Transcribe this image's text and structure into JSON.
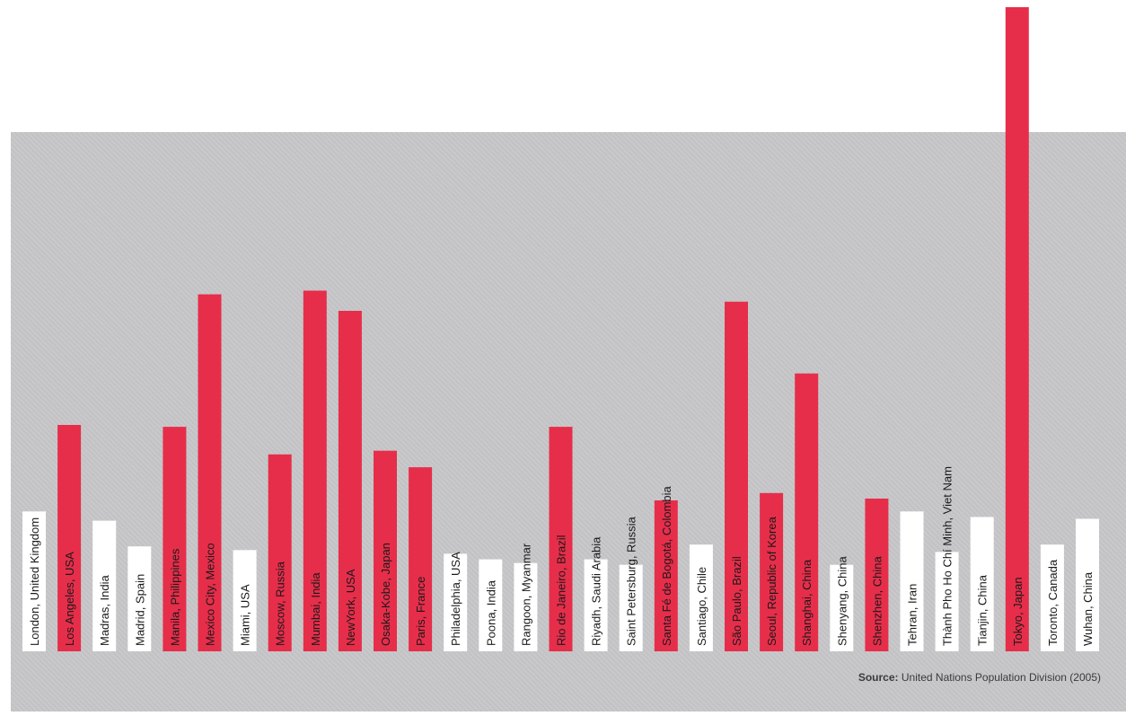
{
  "chart_data": {
    "type": "bar",
    "title": "",
    "xlabel": "",
    "ylabel": "",
    "categories": [
      "London, United Kingdom",
      "Los Angeles, USA",
      "Madras, India",
      "Madrid, Spain",
      "Manila, Philippines",
      "Mexico City, Mexico",
      "Miami, USA",
      "Moscow, Russia",
      "Mumbai, India",
      "NewYork, USA",
      "Osaka-Kobe, Japan",
      "Paris, France",
      "Philadelphia, USA",
      "Poona, India",
      "Rangoon, Myanmar",
      "Rio de Janeiro, Brazil",
      "Riyadh, Saudi Arabia",
      "Saint Petersburg, Russia",
      "Santa Fé de Bogotá, Colombia",
      "Santiago, Chile",
      "São Paulo, Brazil",
      "Seoul, Republic of Korea",
      "Shanghai, China",
      "Shenyang, China",
      "Shenzhen, China",
      "Tehran, Iran",
      "Thành Pho Ho Chí Minh, Viet Nam",
      "Tianjin, China",
      "Tokyo, Japan",
      "Toronto, Canada",
      "Wuhan, China"
    ],
    "values": [
      7.6,
      12.3,
      7.1,
      5.7,
      12.2,
      19.4,
      5.5,
      10.7,
      19.6,
      18.5,
      10.9,
      10.0,
      5.3,
      5.0,
      4.8,
      12.2,
      5.0,
      4.7,
      8.2,
      5.8,
      19.0,
      8.6,
      15.1,
      4.7,
      8.3,
      7.6,
      5.4,
      7.3,
      35.0,
      5.8,
      7.2
    ],
    "highlight": [
      false,
      true,
      false,
      false,
      true,
      true,
      false,
      true,
      true,
      true,
      true,
      true,
      false,
      false,
      false,
      true,
      false,
      false,
      true,
      false,
      true,
      true,
      true,
      false,
      true,
      false,
      false,
      false,
      true,
      false,
      false
    ],
    "ylim": [
      0,
      35
    ],
    "grid": false,
    "legend": "none",
    "colors": {
      "highlight": "#e62e4a",
      "normal": "#ffffff",
      "background": "#c6c6c8",
      "label": "#1a1a1a"
    }
  },
  "source": {
    "prefix": "Source:",
    "text": "United Nations Population Division (2005)"
  }
}
